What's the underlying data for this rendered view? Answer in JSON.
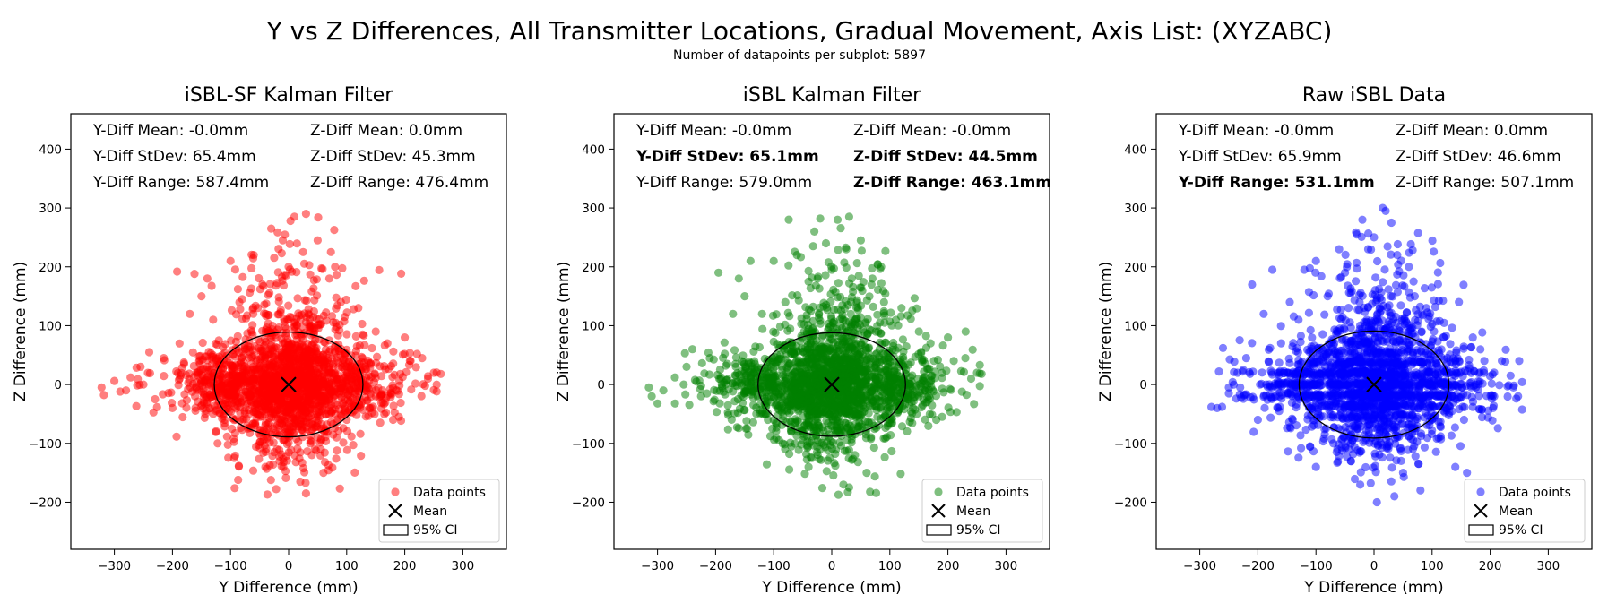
{
  "figure": {
    "title": "Y vs Z Differences, All Transmitter Locations, Gradual Movement, Axis List: (XYZABC)",
    "subtitle": "Number of datapoints per subplot: 5897"
  },
  "chart_data": [
    {
      "type": "scatter",
      "title": "iSBL-SF Kalman Filter",
      "xlabel": "Y Difference (mm)",
      "ylabel": "Z Difference (mm)",
      "xlim": [
        -375,
        375
      ],
      "ylim": [
        -280,
        460
      ],
      "xticks": [
        -300,
        -200,
        -100,
        0,
        100,
        200,
        300
      ],
      "yticks": [
        -200,
        -100,
        0,
        100,
        200,
        300,
        400
      ],
      "grid": false,
      "color": "#ff0000",
      "mean": [
        0,
        0
      ],
      "ci_ellipse": {
        "center": [
          0,
          0
        ],
        "y_halfwidth": 128,
        "z_halfheight": 89
      },
      "stats": [
        {
          "text": "Y-Diff Mean: -0.0mm",
          "bold": false
        },
        {
          "text": "Z-Diff Mean: 0.0mm",
          "bold": false
        },
        {
          "text": "Y-Diff StDev: 65.4mm",
          "bold": false
        },
        {
          "text": "Z-Diff StDev: 45.3mm",
          "bold": false
        },
        {
          "text": "Y-Diff Range: 587.4mm",
          "bold": false
        },
        {
          "text": "Z-Diff Range: 476.4mm",
          "bold": false
        }
      ],
      "legend": {
        "position": "lower-right",
        "entries": [
          "Data points",
          "Mean",
          "95% CI"
        ]
      },
      "sample_points": [
        [
          -322,
          -5
        ],
        [
          -318,
          -18
        ],
        [
          -290,
          -12
        ],
        [
          -272,
          12
        ],
        [
          -255,
          30
        ],
        [
          -240,
          55
        ],
        [
          -230,
          -25
        ],
        [
          -215,
          45
        ],
        [
          -200,
          -40
        ],
        [
          -192,
          192
        ],
        [
          -180,
          35
        ],
        [
          -170,
          120
        ],
        [
          -162,
          188
        ],
        [
          -150,
          150
        ],
        [
          -140,
          180
        ],
        [
          -130,
          110
        ],
        [
          -120,
          75
        ],
        [
          -110,
          -60
        ],
        [
          -100,
          210
        ],
        [
          -80,
          145
        ],
        [
          -70,
          -75
        ],
        [
          -60,
          220
        ],
        [
          -45,
          170
        ],
        [
          -30,
          265
        ],
        [
          -20,
          -110
        ],
        [
          -10,
          245
        ],
        [
          0,
          200
        ],
        [
          10,
          285
        ],
        [
          20,
          -165
        ],
        [
          25,
          225
        ],
        [
          30,
          290
        ],
        [
          40,
          -120
        ],
        [
          50,
          245
        ],
        [
          60,
          -150
        ],
        [
          70,
          180
        ],
        [
          80,
          200
        ],
        [
          90,
          140
        ],
        [
          100,
          -60
        ],
        [
          120,
          130
        ],
        [
          140,
          -40
        ],
        [
          150,
          90
        ],
        [
          170,
          70
        ],
        [
          190,
          -55
        ],
        [
          200,
          80
        ],
        [
          210,
          40
        ],
        [
          230,
          45
        ],
        [
          250,
          20
        ],
        [
          262,
          18
        ],
        [
          240,
          10
        ],
        [
          -250,
          0
        ],
        [
          -280,
          -10
        ],
        [
          180,
          -60
        ],
        [
          -130,
          -50
        ],
        [
          150,
          -20
        ],
        [
          30,
          -185
        ],
        [
          -40,
          -140
        ]
      ]
    },
    {
      "type": "scatter",
      "title": "iSBL Kalman Filter",
      "xlabel": "Y Difference (mm)",
      "ylabel": "Z Difference (mm)",
      "xlim": [
        -375,
        375
      ],
      "ylim": [
        -280,
        460
      ],
      "xticks": [
        -300,
        -200,
        -100,
        0,
        100,
        200,
        300
      ],
      "yticks": [
        -200,
        -100,
        0,
        100,
        200,
        300,
        400
      ],
      "grid": false,
      "color": "#008000",
      "mean": [
        0,
        0
      ],
      "ci_ellipse": {
        "center": [
          0,
          0
        ],
        "y_halfwidth": 127,
        "z_halfheight": 88
      },
      "stats": [
        {
          "text": "Y-Diff Mean: -0.0mm",
          "bold": false
        },
        {
          "text": "Z-Diff Mean: -0.0mm",
          "bold": false
        },
        {
          "text": "Y-Diff StDev: 65.1mm",
          "bold": true
        },
        {
          "text": "Z-Diff StDev: 44.5mm",
          "bold": true
        },
        {
          "text": "Y-Diff Range: 579.0mm",
          "bold": false
        },
        {
          "text": "Z-Diff Range: 463.1mm",
          "bold": true
        }
      ],
      "legend": {
        "position": "lower-right",
        "entries": [
          "Data points",
          "Mean",
          "95% CI"
        ]
      },
      "sample_points": [
        [
          -315,
          -5
        ],
        [
          -310,
          -20
        ],
        [
          -290,
          -10
        ],
        [
          -270,
          12
        ],
        [
          -250,
          30
        ],
        [
          -240,
          60
        ],
        [
          -225,
          -20
        ],
        [
          -210,
          45
        ],
        [
          -195,
          190
        ],
        [
          -180,
          35
        ],
        [
          -170,
          120
        ],
        [
          -160,
          180
        ],
        [
          -150,
          150
        ],
        [
          -140,
          210
        ],
        [
          -120,
          120
        ],
        [
          -110,
          -60
        ],
        [
          -100,
          210
        ],
        [
          -80,
          140
        ],
        [
          -70,
          -80
        ],
        [
          -60,
          220
        ],
        [
          -40,
          175
        ],
        [
          -30,
          260
        ],
        [
          -20,
          -110
        ],
        [
          -10,
          240
        ],
        [
          0,
          195
        ],
        [
          10,
          280
        ],
        [
          20,
          -170
        ],
        [
          25,
          230
        ],
        [
          30,
          285
        ],
        [
          40,
          -120
        ],
        [
          50,
          245
        ],
        [
          60,
          -150
        ],
        [
          70,
          180
        ],
        [
          85,
          200
        ],
        [
          90,
          140
        ],
        [
          100,
          -60
        ],
        [
          120,
          130
        ],
        [
          140,
          -40
        ],
        [
          150,
          90
        ],
        [
          170,
          70
        ],
        [
          190,
          -55
        ],
        [
          200,
          80
        ],
        [
          210,
          40
        ],
        [
          230,
          45
        ],
        [
          250,
          20
        ],
        [
          258,
          18
        ],
        [
          240,
          10
        ],
        [
          -255,
          0
        ],
        [
          180,
          -60
        ],
        [
          -130,
          -50
        ],
        [
          150,
          -20
        ],
        [
          30,
          -175
        ],
        [
          -40,
          -140
        ]
      ]
    },
    {
      "type": "scatter",
      "title": "Raw iSBL Data",
      "xlabel": "Y Difference (mm)",
      "ylabel": "Z Difference (mm)",
      "xlim": [
        -375,
        375
      ],
      "ylim": [
        -280,
        460
      ],
      "xticks": [
        -300,
        -200,
        -100,
        0,
        100,
        200,
        300
      ],
      "yticks": [
        -200,
        -100,
        0,
        100,
        200,
        300,
        400
      ],
      "grid": false,
      "color": "#0000ff",
      "mean": [
        0,
        0
      ],
      "ci_ellipse": {
        "center": [
          0,
          0
        ],
        "y_halfwidth": 129,
        "z_halfheight": 91
      },
      "stats": [
        {
          "text": "Y-Diff Mean: -0.0mm",
          "bold": false
        },
        {
          "text": "Z-Diff Mean: 0.0mm",
          "bold": false
        },
        {
          "text": "Y-Diff StDev: 65.9mm",
          "bold": false
        },
        {
          "text": "Z-Diff StDev: 46.6mm",
          "bold": false
        },
        {
          "text": "Y-Diff Range: 531.1mm",
          "bold": true
        },
        {
          "text": "Z-Diff Range: 507.1mm",
          "bold": false
        }
      ],
      "legend": {
        "position": "lower-right",
        "entries": [
          "Data points",
          "Mean",
          "95% CI"
        ]
      },
      "sample_points": [
        [
          -280,
          -38
        ],
        [
          -270,
          -40
        ],
        [
          -260,
          62
        ],
        [
          -250,
          -15
        ],
        [
          -235,
          20
        ],
        [
          -220,
          45
        ],
        [
          -210,
          170
        ],
        [
          -200,
          -60
        ],
        [
          -190,
          120
        ],
        [
          -175,
          195
        ],
        [
          -160,
          70
        ],
        [
          -145,
          140
        ],
        [
          -130,
          110
        ],
        [
          -120,
          195
        ],
        [
          -110,
          -105
        ],
        [
          -100,
          210
        ],
        [
          -80,
          150
        ],
        [
          -70,
          -100
        ],
        [
          -60,
          230
        ],
        [
          -50,
          190
        ],
        [
          -40,
          -130
        ],
        [
          -30,
          255
        ],
        [
          -20,
          280
        ],
        [
          -10,
          230
        ],
        [
          0,
          250
        ],
        [
          5,
          -200
        ],
        [
          15,
          300
        ],
        [
          20,
          295
        ],
        [
          30,
          275
        ],
        [
          35,
          -190
        ],
        [
          40,
          220
        ],
        [
          50,
          -150
        ],
        [
          60,
          200
        ],
        [
          70,
          150
        ],
        [
          80,
          -180
        ],
        [
          90,
          130
        ],
        [
          100,
          -60
        ],
        [
          120,
          80
        ],
        [
          140,
          40
        ],
        [
          155,
          -60
        ],
        [
          170,
          80
        ],
        [
          190,
          40
        ],
        [
          205,
          -40
        ],
        [
          220,
          40
        ],
        [
          235,
          15
        ],
        [
          248,
          -20
        ],
        [
          250,
          40
        ],
        [
          240,
          -5
        ],
        [
          -140,
          -60
        ],
        [
          -250,
          -5
        ],
        [
          140,
          -140
        ],
        [
          -100,
          -140
        ],
        [
          160,
          -150
        ]
      ]
    }
  ]
}
